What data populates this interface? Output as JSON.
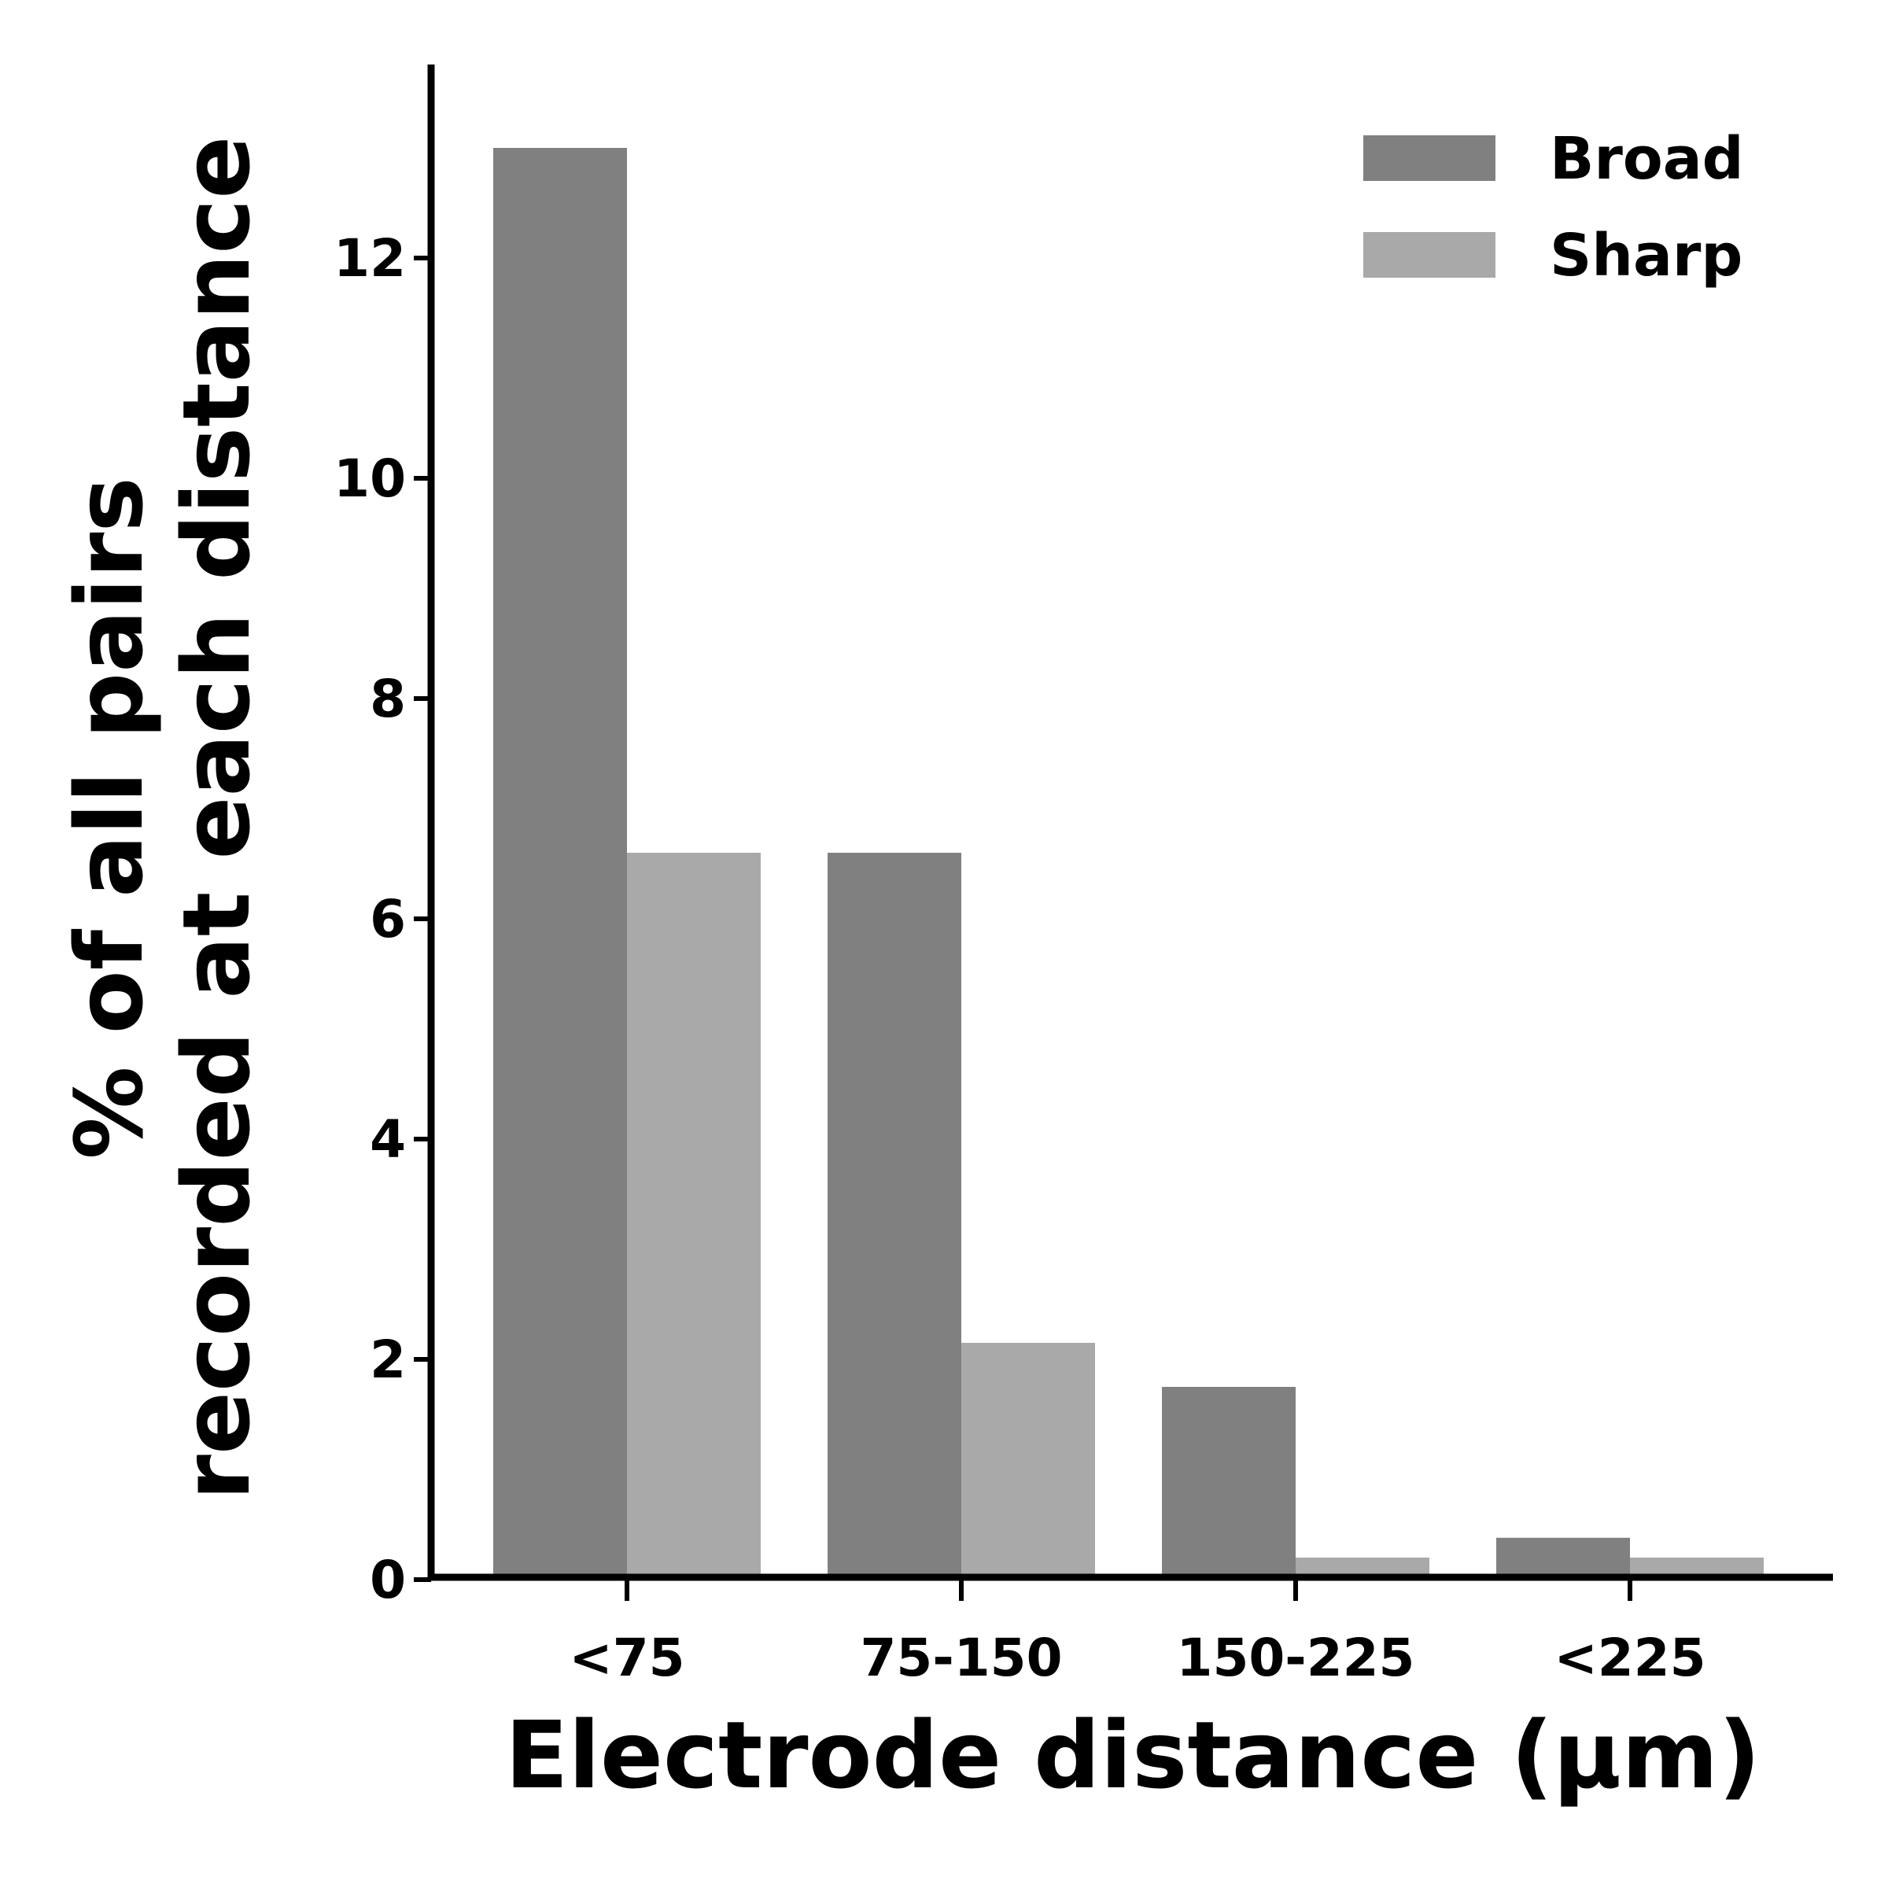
{
  "chart_data": {
    "type": "bar",
    "categories": [
      "<75",
      "75-150",
      "150-225",
      "<225"
    ],
    "series": [
      {
        "name": "Broad",
        "color": "#808080",
        "values": [
          13.0,
          6.6,
          1.75,
          0.38
        ]
      },
      {
        "name": "Sharp",
        "color": "#a9a9a9",
        "values": [
          6.6,
          2.15,
          0.2,
          0.2
        ]
      }
    ],
    "xlabel": "Electrode distance (μm)",
    "ylabel_lines": [
      "% of all pairs",
      "recorded at each distance"
    ],
    "yticks": [
      0,
      2,
      4,
      6,
      8,
      10,
      12
    ],
    "ylim": [
      0,
      13.7
    ],
    "grid": false,
    "legend_position": "top-right"
  }
}
